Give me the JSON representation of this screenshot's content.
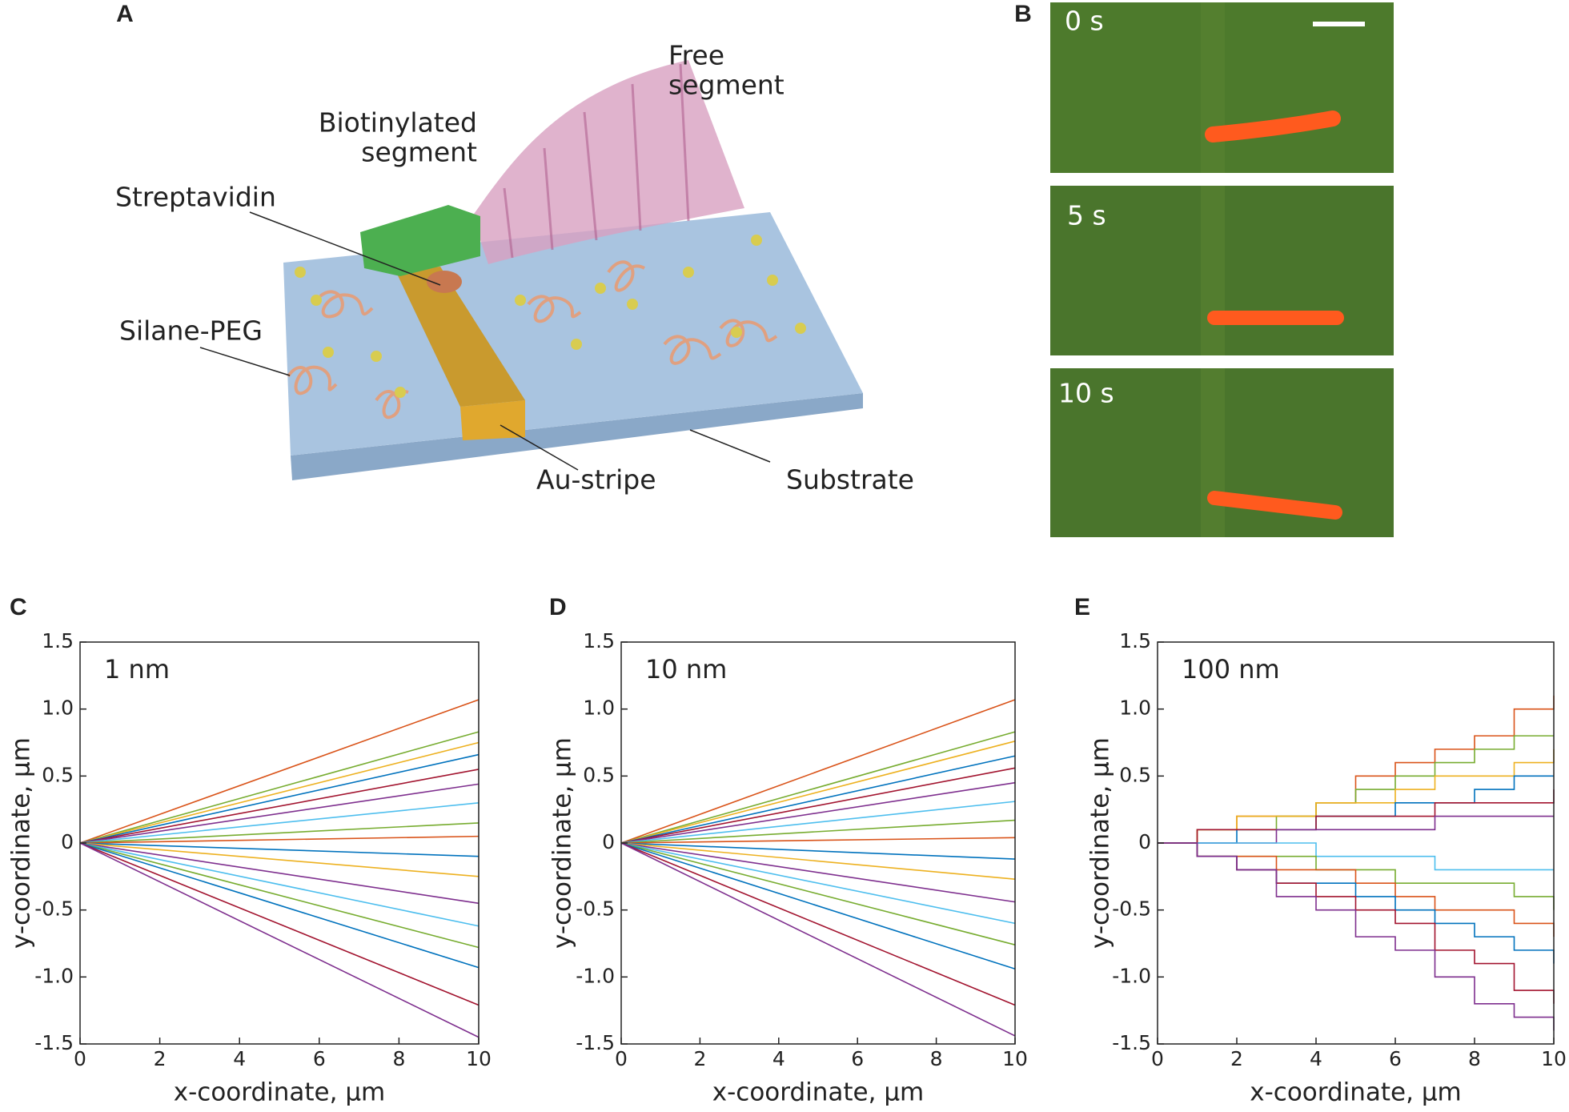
{
  "panel_a": {
    "label": "A",
    "free_segment": [
      "Free",
      "segment"
    ],
    "biotinylated_segment": [
      "Biotinylated",
      "segment"
    ],
    "streptavidin": "Streptavidin",
    "silane_peg": "Silane-PEG",
    "au_stripe": "Au-stripe",
    "substrate": "Substrate"
  },
  "panel_b": {
    "label": "B",
    "frames": [
      "0 s",
      "5 s",
      "10 s"
    ]
  },
  "chart_data": [
    {
      "type": "line",
      "panel": "C",
      "annotation": "1 nm",
      "x_label": "x-coordinate, µm",
      "y_label": "y-coordinate, µm",
      "xlim": [
        0,
        10
      ],
      "xticks": [
        0,
        2,
        4,
        6,
        8,
        10
      ],
      "ylim": [
        -1.5,
        1.5
      ],
      "yticks": [
        -1.5,
        {
          "value": -1,
          "label": "-1.0"
        },
        -0.5,
        0,
        0.5,
        {
          "value": 1,
          "label": "1.0"
        },
        1.5
      ],
      "x": [
        0,
        10
      ],
      "series": [
        {
          "color": "#d95319",
          "values": [
            0,
            1.07
          ]
        },
        {
          "color": "#77ac30",
          "values": [
            0,
            0.83
          ]
        },
        {
          "color": "#edb120",
          "values": [
            0,
            0.75
          ]
        },
        {
          "color": "#0072bd",
          "values": [
            0,
            0.66
          ]
        },
        {
          "color": "#a2142f",
          "values": [
            0,
            0.55
          ]
        },
        {
          "color": "#7e2f8e",
          "values": [
            0,
            0.44
          ]
        },
        {
          "color": "#4dbeee",
          "values": [
            0,
            0.3
          ]
        },
        {
          "color": "#77ac30",
          "values": [
            0,
            0.15
          ]
        },
        {
          "color": "#d95319",
          "values": [
            0,
            0.05
          ]
        },
        {
          "color": "#0072bd",
          "values": [
            0,
            -0.1
          ]
        },
        {
          "color": "#edb120",
          "values": [
            0,
            -0.25
          ]
        },
        {
          "color": "#7e2f8e",
          "values": [
            0,
            -0.45
          ]
        },
        {
          "color": "#4dbeee",
          "values": [
            0,
            -0.62
          ]
        },
        {
          "color": "#77ac30",
          "values": [
            0,
            -0.78
          ]
        },
        {
          "color": "#0072bd",
          "values": [
            0,
            -0.93
          ]
        },
        {
          "color": "#a2142f",
          "values": [
            0,
            -1.21
          ]
        },
        {
          "color": "#7e2f8e",
          "values": [
            0,
            -1.45
          ]
        }
      ]
    },
    {
      "type": "line",
      "panel": "D",
      "annotation": "10 nm",
      "x_label": "x-coordinate, µm",
      "y_label": "y-coordinate, µm",
      "xlim": [
        0,
        10
      ],
      "xticks": [
        0,
        2,
        4,
        6,
        8,
        10
      ],
      "ylim": [
        -1.5,
        1.5
      ],
      "yticks": [
        -1.5,
        {
          "value": -1,
          "label": "-1.0"
        },
        -0.5,
        0,
        0.5,
        {
          "value": 1,
          "label": "1.0"
        },
        1.5
      ],
      "x": [
        0,
        10
      ],
      "series": [
        {
          "color": "#d95319",
          "values": [
            0,
            1.07
          ]
        },
        {
          "color": "#77ac30",
          "values": [
            0,
            0.83
          ]
        },
        {
          "color": "#edb120",
          "values": [
            0,
            0.76
          ]
        },
        {
          "color": "#0072bd",
          "values": [
            0,
            0.65
          ]
        },
        {
          "color": "#a2142f",
          "values": [
            0,
            0.56
          ]
        },
        {
          "color": "#7e2f8e",
          "values": [
            0,
            0.45
          ]
        },
        {
          "color": "#4dbeee",
          "values": [
            0,
            0.31
          ]
        },
        {
          "color": "#77ac30",
          "values": [
            0,
            0.17
          ]
        },
        {
          "color": "#d95319",
          "values": [
            0,
            0.04
          ]
        },
        {
          "color": "#0072bd",
          "values": [
            0,
            -0.12
          ]
        },
        {
          "color": "#edb120",
          "values": [
            0,
            -0.27
          ]
        },
        {
          "color": "#7e2f8e",
          "values": [
            0,
            -0.44
          ]
        },
        {
          "color": "#4dbeee",
          "values": [
            0,
            -0.6
          ]
        },
        {
          "color": "#77ac30",
          "values": [
            0,
            -0.76
          ]
        },
        {
          "color": "#0072bd",
          "values": [
            0,
            -0.94
          ]
        },
        {
          "color": "#a2142f",
          "values": [
            0,
            -1.21
          ]
        },
        {
          "color": "#7e2f8e",
          "values": [
            0,
            -1.44
          ]
        }
      ]
    },
    {
      "type": "line",
      "step": true,
      "panel": "E",
      "annotation": "100 nm",
      "x_label": "x-coordinate, µm",
      "y_label": "y-coordinate, µm",
      "xlim": [
        0,
        10
      ],
      "xticks": [
        0,
        2,
        4,
        6,
        8,
        10
      ],
      "ylim": [
        -1.5,
        1.5
      ],
      "yticks": [
        -1.5,
        {
          "value": -1,
          "label": "-1.0"
        },
        -0.5,
        0,
        0.5,
        {
          "value": 1,
          "label": "1.0"
        },
        1.5
      ],
      "x": [
        0,
        1,
        2,
        3,
        4,
        5,
        6,
        7,
        8,
        9,
        10
      ],
      "series": [
        {
          "color": "#d95319",
          "values": [
            0,
            0.1,
            0.2,
            0.2,
            0.3,
            0.5,
            0.6,
            0.7,
            0.8,
            1.0,
            1.1
          ]
        },
        {
          "color": "#77ac30",
          "values": [
            0,
            0.1,
            0.1,
            0.2,
            0.3,
            0.4,
            0.5,
            0.6,
            0.7,
            0.8,
            0.8
          ]
        },
        {
          "color": "#edb120",
          "values": [
            0,
            0.1,
            0.2,
            0.2,
            0.3,
            0.3,
            0.4,
            0.5,
            0.5,
            0.6,
            0.7
          ]
        },
        {
          "color": "#0072bd",
          "values": [
            0,
            0,
            0.1,
            0.1,
            0.2,
            0.2,
            0.3,
            0.3,
            0.4,
            0.5,
            0.5
          ]
        },
        {
          "color": "#a2142f",
          "values": [
            0,
            0.1,
            0.1,
            0.1,
            0.2,
            0.2,
            0.2,
            0.3,
            0.3,
            0.3,
            0.4
          ]
        },
        {
          "color": "#7e2f8e",
          "values": [
            0,
            0,
            0,
            0.1,
            0.1,
            0.1,
            0.1,
            0.2,
            0.2,
            0.2,
            0.2
          ]
        },
        {
          "color": "#4dbeee",
          "values": [
            0,
            0,
            0,
            0,
            -0.1,
            -0.1,
            -0.1,
            -0.2,
            -0.2,
            -0.2,
            -0.2
          ]
        },
        {
          "color": "#77ac30",
          "values": [
            0,
            -0.1,
            -0.1,
            -0.1,
            -0.2,
            -0.2,
            -0.3,
            -0.3,
            -0.3,
            -0.4,
            -0.5
          ]
        },
        {
          "color": "#d95319",
          "values": [
            0,
            -0.1,
            -0.1,
            -0.2,
            -0.2,
            -0.3,
            -0.4,
            -0.5,
            -0.5,
            -0.6,
            -0.7
          ]
        },
        {
          "color": "#0072bd",
          "values": [
            0,
            -0.1,
            -0.2,
            -0.3,
            -0.3,
            -0.4,
            -0.5,
            -0.6,
            -0.7,
            -0.8,
            -0.9
          ]
        },
        {
          "color": "#a2142f",
          "values": [
            0,
            -0.1,
            -0.2,
            -0.3,
            -0.4,
            -0.5,
            -0.6,
            -0.8,
            -0.9,
            -1.1,
            -1.2
          ]
        },
        {
          "color": "#7e2f8e",
          "values": [
            0,
            -0.1,
            -0.2,
            -0.4,
            -0.5,
            -0.7,
            -0.8,
            -1.0,
            -1.2,
            -1.3,
            -1.4
          ]
        }
      ]
    }
  ]
}
